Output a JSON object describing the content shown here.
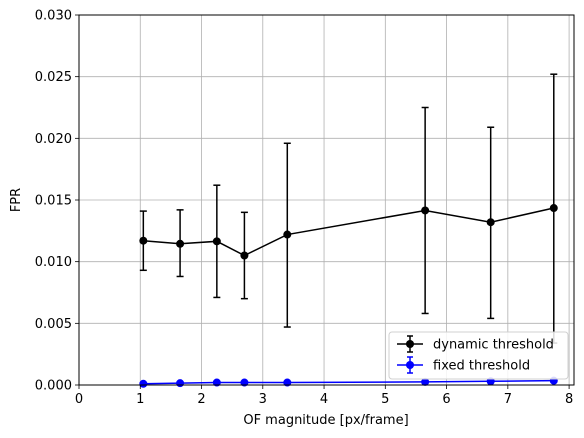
{
  "chart_data": {
    "type": "line",
    "title": "",
    "xlabel": "OF magnitude [px/frame]",
    "ylabel": "FPR",
    "xlim": [
      0,
      8.08
    ],
    "ylim": [
      0,
      0.03
    ],
    "grid": true,
    "legend_position": "lower-right",
    "x_ticks": [
      0,
      1,
      2,
      3,
      4,
      5,
      6,
      7,
      8
    ],
    "x_tick_labels": [
      "0",
      "1",
      "2",
      "3",
      "4",
      "5",
      "6",
      "7",
      "8"
    ],
    "y_ticks": [
      0,
      0.005,
      0.01,
      0.015,
      0.02,
      0.025,
      0.03
    ],
    "y_tick_labels": [
      "0.000",
      "0.005",
      "0.010",
      "0.015",
      "0.020",
      "0.025",
      "0.030"
    ],
    "series": [
      {
        "name": "dynamic threshold",
        "color": "#000000",
        "x": [
          1.05,
          1.65,
          2.25,
          2.7,
          3.4,
          5.65,
          6.72,
          7.75
        ],
        "y": [
          0.0117,
          0.01145,
          0.01165,
          0.0105,
          0.0122,
          0.01415,
          0.0132,
          0.01435
        ],
        "yerr_low": [
          0.0093,
          0.0088,
          0.0071,
          0.007,
          0.0047,
          0.0058,
          0.0054,
          0.0034
        ],
        "yerr_high": [
          0.0141,
          0.0142,
          0.0162,
          0.014,
          0.0196,
          0.0225,
          0.0209,
          0.0252
        ]
      },
      {
        "name": "fixed threshold",
        "color": "#0000ff",
        "x": [
          1.05,
          1.65,
          2.25,
          2.7,
          3.4,
          5.65,
          6.72,
          7.75
        ],
        "y": [
          0.0001,
          0.00015,
          0.0002,
          0.0002,
          0.0002,
          0.00025,
          0.0003,
          0.00035
        ],
        "yerr_low": [
          0.0001,
          0.00015,
          0.0002,
          0.0002,
          0.0002,
          0.00025,
          0.0003,
          0.00035
        ],
        "yerr_high": [
          0.0001,
          0.00015,
          0.0002,
          0.0002,
          0.0002,
          0.00025,
          0.0003,
          0.00035
        ]
      }
    ]
  }
}
